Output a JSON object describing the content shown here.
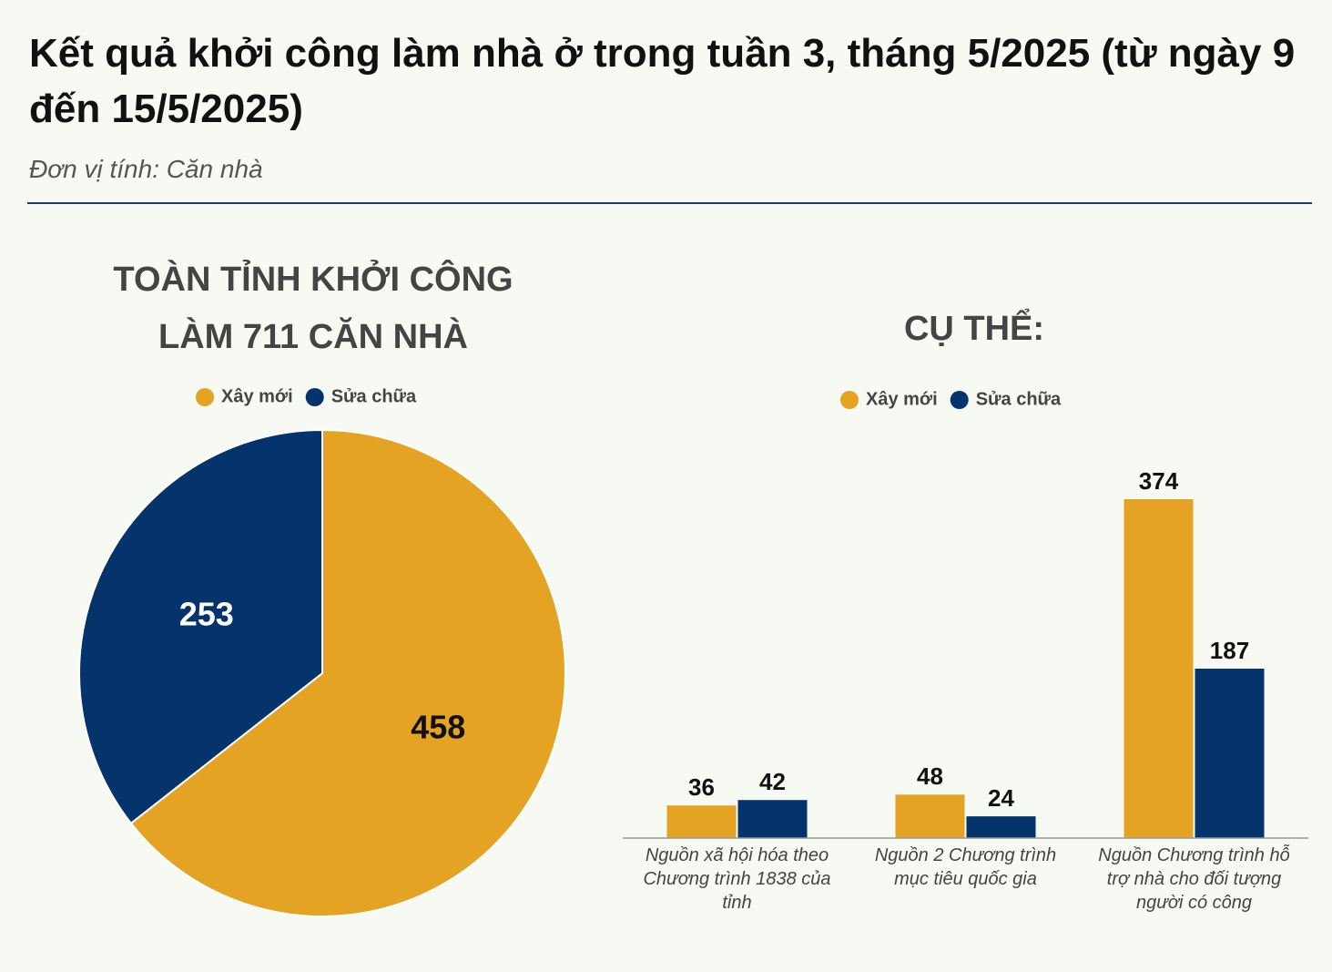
{
  "title": "Kết quả khởi công làm nhà ở trong tuần 3, tháng 5/2025 (từ ngày 9 đến 15/5/2025)",
  "subtitle": "Đơn vị tính: Căn nhà",
  "chart_data": [
    {
      "type": "pie",
      "title": "TOÀN TỈNH KHỞI CÔNG LÀM 711 CĂN NHÀ",
      "categories": [
        "Xây mới",
        "Sửa chữa"
      ],
      "values": [
        458,
        253
      ],
      "colors": [
        "#e5a323",
        "#05336b"
      ],
      "label_colors": [
        "#111111",
        "#ffffff"
      ]
    },
    {
      "type": "bar",
      "title": "CỤ THỂ:",
      "categories": [
        "Nguồn xã hội hóa theo Chương trình 1838 của tỉnh",
        "Nguồn 2 Chương trình mục tiêu quốc gia",
        "Nguồn Chương trình hỗ trợ nhà cho đối tượng người có công"
      ],
      "series": [
        {
          "name": "Xây mới",
          "color": "#e5a323",
          "values": [
            36,
            48,
            374
          ]
        },
        {
          "name": "Sửa chữa",
          "color": "#05336b",
          "values": [
            42,
            24,
            187
          ]
        }
      ]
    }
  ]
}
